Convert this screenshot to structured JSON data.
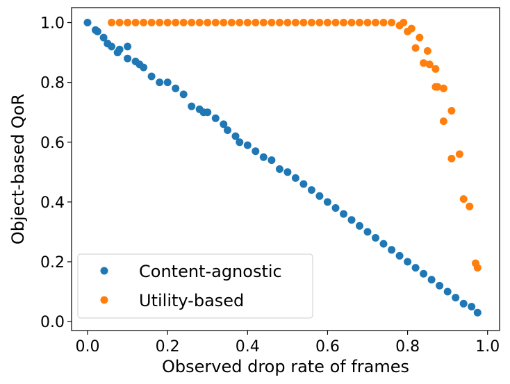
{
  "chart_data": {
    "type": "scatter",
    "xlabel": "Observed drop rate of frames",
    "ylabel": "Object-based QoR",
    "xlim": [
      -0.04,
      1.03
    ],
    "ylim": [
      -0.03,
      1.05
    ],
    "xticks": [
      0.0,
      0.2,
      0.4,
      0.6,
      0.8,
      1.0
    ],
    "xtick_labels": [
      "0.0",
      "0.2",
      "0.4",
      "0.6",
      "0.8",
      "1.0"
    ],
    "yticks": [
      0.0,
      0.2,
      0.4,
      0.6,
      0.8,
      1.0
    ],
    "ytick_labels": [
      "0.0",
      "0.2",
      "0.4",
      "0.6",
      "0.8",
      "1.0"
    ],
    "grid": false,
    "legend_position": "lower-left",
    "series": [
      {
        "name": "Content-agnostic",
        "color": "#1f77b4",
        "x": [
          0.0,
          0.02,
          0.025,
          0.04,
          0.05,
          0.06,
          0.075,
          0.08,
          0.1,
          0.1,
          0.12,
          0.13,
          0.14,
          0.16,
          0.18,
          0.2,
          0.22,
          0.24,
          0.26,
          0.28,
          0.29,
          0.3,
          0.32,
          0.34,
          0.35,
          0.37,
          0.38,
          0.4,
          0.42,
          0.44,
          0.46,
          0.48,
          0.5,
          0.52,
          0.54,
          0.56,
          0.58,
          0.6,
          0.62,
          0.64,
          0.66,
          0.68,
          0.7,
          0.72,
          0.74,
          0.76,
          0.78,
          0.8,
          0.82,
          0.84,
          0.86,
          0.88,
          0.9,
          0.92,
          0.94,
          0.96,
          0.975
        ],
        "y": [
          1.0,
          0.975,
          0.97,
          0.95,
          0.93,
          0.92,
          0.9,
          0.91,
          0.92,
          0.88,
          0.87,
          0.86,
          0.85,
          0.82,
          0.8,
          0.8,
          0.78,
          0.76,
          0.72,
          0.71,
          0.7,
          0.7,
          0.68,
          0.66,
          0.64,
          0.62,
          0.6,
          0.59,
          0.57,
          0.55,
          0.54,
          0.51,
          0.5,
          0.48,
          0.46,
          0.44,
          0.42,
          0.4,
          0.38,
          0.36,
          0.34,
          0.32,
          0.3,
          0.28,
          0.26,
          0.24,
          0.22,
          0.2,
          0.18,
          0.16,
          0.14,
          0.12,
          0.1,
          0.08,
          0.06,
          0.05,
          0.03
        ]
      },
      {
        "name": "Utility-based",
        "color": "#ff7f0e",
        "x": [
          0.06,
          0.08,
          0.1,
          0.12,
          0.14,
          0.16,
          0.18,
          0.2,
          0.22,
          0.24,
          0.26,
          0.28,
          0.3,
          0.32,
          0.34,
          0.36,
          0.38,
          0.4,
          0.42,
          0.44,
          0.46,
          0.48,
          0.5,
          0.52,
          0.54,
          0.56,
          0.58,
          0.6,
          0.62,
          0.64,
          0.66,
          0.68,
          0.7,
          0.72,
          0.74,
          0.76,
          0.78,
          0.79,
          0.8,
          0.81,
          0.82,
          0.83,
          0.84,
          0.85,
          0.855,
          0.87,
          0.87,
          0.875,
          0.89,
          0.89,
          0.91,
          0.91,
          0.93,
          0.94,
          0.955,
          0.97,
          0.975
        ],
        "y": [
          1.0,
          1.0,
          1.0,
          1.0,
          1.0,
          1.0,
          1.0,
          1.0,
          1.0,
          1.0,
          1.0,
          1.0,
          1.0,
          1.0,
          1.0,
          1.0,
          1.0,
          1.0,
          1.0,
          1.0,
          1.0,
          1.0,
          1.0,
          1.0,
          1.0,
          1.0,
          1.0,
          1.0,
          1.0,
          1.0,
          1.0,
          1.0,
          1.0,
          1.0,
          1.0,
          1.0,
          0.99,
          1.0,
          0.97,
          0.98,
          0.915,
          0.95,
          0.865,
          0.905,
          0.86,
          0.845,
          0.785,
          0.785,
          0.67,
          0.78,
          0.545,
          0.705,
          0.56,
          0.41,
          0.385,
          0.195,
          0.18
        ]
      }
    ]
  }
}
